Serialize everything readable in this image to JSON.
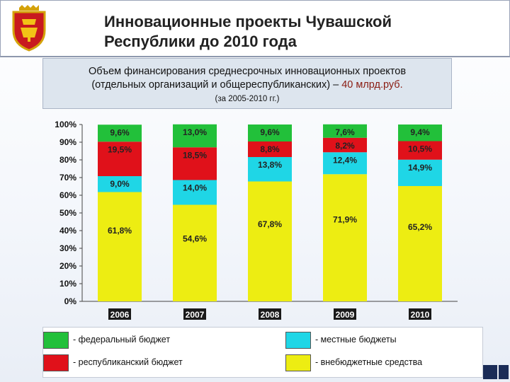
{
  "header": {
    "title_line1": "Инновационные проекты Чувашской",
    "title_line2": "Республики до 2010 года"
  },
  "subtitle": {
    "line1": "Объем финансирования среднесрочных инновационных проектов",
    "line2_main": "(отдельных организаций и  общереспубликанских) – ",
    "line2_highlight": "40 млрд.руб.",
    "line3": "(за 2005-2010 гг.)"
  },
  "colors": {
    "federal": "#22c03a",
    "republic": "#e0111a",
    "local": "#1fd6e6",
    "offbudget": "#eded12",
    "year_label_bg": "#1a1a1a"
  },
  "chart_data": {
    "type": "bar",
    "stacked": true,
    "categories": [
      "2006",
      "2007",
      "2008",
      "2009",
      "2010"
    ],
    "series": [
      {
        "name": "- внебюджетные средства",
        "color_key": "offbudget",
        "values": [
          61.8,
          54.6,
          67.8,
          71.9,
          65.2
        ],
        "labels": [
          "61,8%",
          "54,6%",
          "67,8%",
          "71,9%",
          "65,2%"
        ]
      },
      {
        "name": "- местные бюджеты",
        "color_key": "local",
        "values": [
          9.0,
          14.0,
          13.8,
          12.4,
          14.9
        ],
        "labels": [
          "9,0%",
          "14,0%",
          "13,8%",
          "12,4%",
          "14,9%"
        ]
      },
      {
        "name": "- республиканский бюджет",
        "color_key": "republic",
        "values": [
          19.5,
          18.5,
          8.8,
          8.2,
          10.5
        ],
        "labels": [
          "19,5%",
          "18,5%",
          "8,8%",
          "8,2%",
          "10,5%"
        ]
      },
      {
        "name": "- федеральный бюджет",
        "color_key": "federal",
        "values": [
          9.6,
          13.0,
          9.6,
          7.6,
          9.4
        ],
        "labels": [
          "9,6%",
          "13,0%",
          "9,6%",
          "7,6%",
          "9,4%"
        ]
      }
    ],
    "y_ticks": [
      "0%",
      "10%",
      "20%",
      "30%",
      "40%",
      "50%",
      "60%",
      "70%",
      "80%",
      "90%",
      "100%"
    ],
    "ylim": [
      0,
      100
    ],
    "grid": false,
    "legend_position": "bottom"
  },
  "legend": [
    {
      "label": "- федеральный бюджет",
      "color_key": "federal"
    },
    {
      "label": "- местные бюджеты",
      "color_key": "local"
    },
    {
      "label": "- республиканский бюджет",
      "color_key": "republic"
    },
    {
      "label": "- внебюджетные средства",
      "color_key": "offbudget"
    }
  ]
}
